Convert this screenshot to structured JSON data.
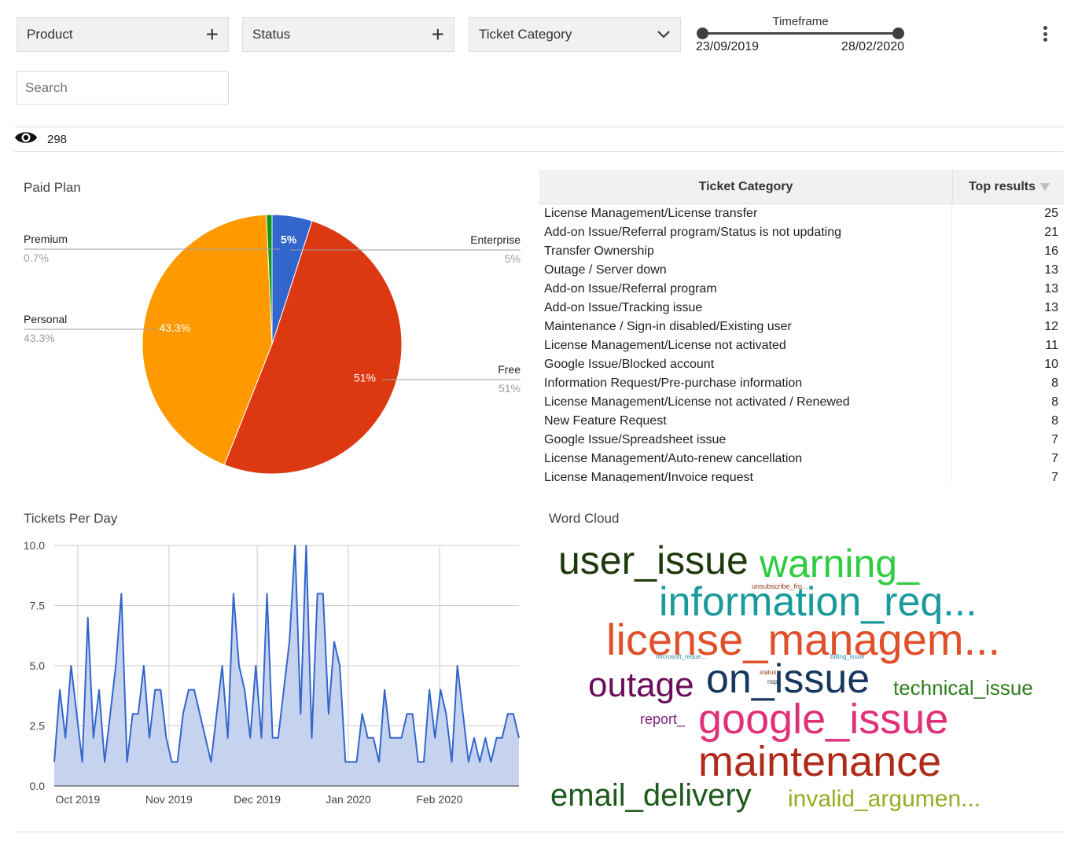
{
  "filters": {
    "product": "Product",
    "status": "Status",
    "ticket_category": "Ticket Category"
  },
  "timeframe": {
    "title": "Timeframe",
    "start": "23/09/2019",
    "end": "28/02/2020"
  },
  "search": {
    "placeholder": "Search"
  },
  "record_count": "298",
  "paid_plan": {
    "title": "Paid Plan",
    "chart_data": {
      "type": "pie",
      "slices": [
        {
          "name": "Enterprise",
          "value": 5,
          "label": "5%",
          "inner_label": "5%",
          "color": "#3366cc"
        },
        {
          "name": "Free",
          "value": 51,
          "label": "51%",
          "inner_label": "51%",
          "color": "#dc3912"
        },
        {
          "name": "Personal",
          "value": 43.3,
          "label": "43.3%",
          "inner_label": "43.3%",
          "color": "#ff9900"
        },
        {
          "name": "Premium",
          "value": 0.7,
          "label": "0.7%",
          "inner_label": "",
          "color": "#109618"
        }
      ]
    }
  },
  "category_table": {
    "headers": [
      "Ticket Category",
      "Top results"
    ],
    "rows": [
      [
        "License Management/License transfer",
        "25"
      ],
      [
        "Add-on Issue/Referral program/Status is not updating",
        "21"
      ],
      [
        "Transfer Ownership",
        "16"
      ],
      [
        "Outage / Server down",
        "13"
      ],
      [
        "Add-on Issue/Referral program",
        "13"
      ],
      [
        "Add-on Issue/Tracking issue",
        "13"
      ],
      [
        "Maintenance / Sign-in disabled/Existing user",
        "12"
      ],
      [
        "License Management/License not activated",
        "11"
      ],
      [
        "Google Issue/Blocked account",
        "10"
      ],
      [
        "Information Request/Pre-purchase information",
        "8"
      ],
      [
        "License Management/License not activated / Renewed",
        "8"
      ],
      [
        "New Feature Request",
        "8"
      ],
      [
        "Google Issue/Spreadsheet issue",
        "7"
      ],
      [
        "License Management/Auto-renew cancellation",
        "7"
      ],
      [
        "License Management/Invoice request",
        "7"
      ]
    ]
  },
  "tickets_per_day": {
    "title": "Tickets Per Day",
    "chart_data": {
      "type": "area",
      "ylim": [
        0,
        10
      ],
      "yticks": [
        "0.0",
        "2.5",
        "5.0",
        "7.5",
        "10.0"
      ],
      "xticks": [
        "Oct 2019",
        "Nov 2019",
        "Dec 2019",
        "Jan 2020",
        "Feb 2020"
      ],
      "x_start": "2019-09-23",
      "x_end": "2020-02-28",
      "series": [
        {
          "color": "#3366cc",
          "fill": "#c5d3ef",
          "values": [
            1,
            4,
            2,
            5,
            3,
            1,
            7,
            2,
            4,
            1,
            3,
            5,
            8,
            1,
            3,
            3,
            5,
            2,
            4,
            4,
            2,
            1,
            1,
            3,
            4,
            4,
            3,
            2,
            1,
            3,
            5,
            2,
            8,
            5,
            4,
            2,
            5,
            2,
            8,
            2,
            2,
            4,
            6,
            10,
            3,
            10,
            2,
            8,
            8,
            3,
            6,
            5,
            1,
            1,
            1,
            3,
            2,
            2,
            1,
            4,
            2,
            2,
            2,
            3,
            3,
            1,
            1,
            4,
            2,
            4,
            3,
            1,
            5,
            3,
            1,
            2,
            1,
            2,
            1,
            2,
            2,
            3,
            3,
            2
          ]
        }
      ]
    }
  },
  "word_cloud": {
    "title": "Word Cloud",
    "words": [
      {
        "text": "user_issue",
        "color": "#1e3a0c"
      },
      {
        "text": "warning_",
        "color": "#2ecc40"
      },
      {
        "text": "unsubscribe_fro...",
        "color": "#8b3a1a"
      },
      {
        "text": "information_req...",
        "color": "#1a9a9a"
      },
      {
        "text": "license_managem...",
        "color": "#e0502a"
      },
      {
        "text": "microsoft_reque...",
        "color": "#2a8ab0"
      },
      {
        "text": "billing_issue",
        "color": "#2a8ab0"
      },
      {
        "text": "outage",
        "color": "#6a0d5a"
      },
      {
        "text": "on_issue",
        "color": "#17375e"
      },
      {
        "text": "status_",
        "color": "#8b3a1a"
      },
      {
        "text": "nsp_",
        "color": "#333333"
      },
      {
        "text": "technical_issue",
        "color": "#2e7d1e"
      },
      {
        "text": "report_",
        "color": "#7a1f7a"
      },
      {
        "text": "google_issue",
        "color": "#e0307a"
      },
      {
        "text": "maintenance",
        "color": "#b02a1a"
      },
      {
        "text": "email_delivery",
        "color": "#1e5a1e"
      },
      {
        "text": "invalid_argumen...",
        "color": "#9aaa22"
      }
    ]
  }
}
